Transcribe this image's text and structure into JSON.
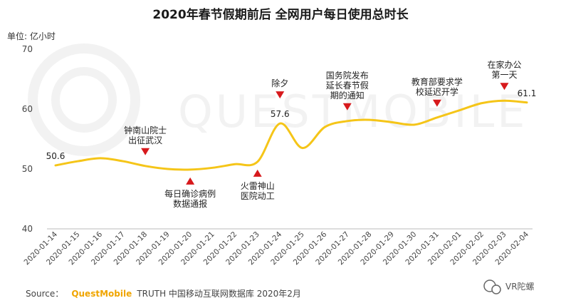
{
  "chart_data": {
    "type": "line",
    "title": "2020年春节假期前后 全网用户每日使用总时长",
    "ylabel": "单位: 亿小时",
    "ylim": [
      40,
      70
    ],
    "yticks": [
      40,
      50,
      60,
      70
    ],
    "grid": false,
    "categories": [
      "2020-01-14",
      "2020-01-15",
      "2020-01-16",
      "2020-01-17",
      "2020-01-18",
      "2020-01-19",
      "2020-01-20",
      "2020-01-21",
      "2020-01-22",
      "2020-01-23",
      "2020-01-24",
      "2020-01-25",
      "2020-01-26",
      "2020-01-27",
      "2020-01-28",
      "2020-01-29",
      "2020-01-30",
      "2020-01-31",
      "2020-02-01",
      "2020-02-02",
      "2020-02-03",
      "2020-02-04"
    ],
    "series": [
      {
        "values": [
          50.6,
          51.3,
          51.8,
          51.3,
          50.5,
          50.0,
          49.9,
          50.2,
          50.8,
          51.2,
          57.6,
          53.5,
          57.0,
          58.0,
          58.2,
          57.8,
          57.4,
          58.6,
          59.8,
          61.0,
          61.4,
          61.1
        ]
      }
    ],
    "data_labels": [
      {
        "index": 0,
        "text": "50.6"
      },
      {
        "index": 10,
        "text": "57.6"
      },
      {
        "index": 21,
        "text": "61.1"
      }
    ],
    "annotations": [
      {
        "index": 4,
        "lines": [
          "钟南山院士",
          "出征武汉"
        ],
        "position": "above"
      },
      {
        "index": 6,
        "lines": [
          "每日确诊病例",
          "数据通报"
        ],
        "position": "below"
      },
      {
        "index": 9,
        "lines": [
          "火雷神山",
          "医院动工"
        ],
        "position": "below"
      },
      {
        "index": 10,
        "lines": [
          "除夕"
        ],
        "position": "above"
      },
      {
        "index": 13,
        "lines": [
          "国务院发布",
          "延长春节假",
          "期的通知"
        ],
        "position": "above"
      },
      {
        "index": 17,
        "lines": [
          "教育部要求学",
          "校延迟开学"
        ],
        "position": "above"
      },
      {
        "index": 20,
        "lines": [
          "在家办公",
          "第一天"
        ],
        "position": "above"
      }
    ]
  },
  "colors": {
    "line": "#f5c518",
    "marker": "#d7191c",
    "axis": "#bbbbbb",
    "brand": "#f0a500"
  },
  "source": {
    "prefix": "Source：",
    "brand": "QuestMobile",
    "text": "TRUTH 中国移动互联网数据库 2020年2月"
  },
  "watermark_text": "VR陀螺",
  "background_watermark": "QUESTMOBILE"
}
